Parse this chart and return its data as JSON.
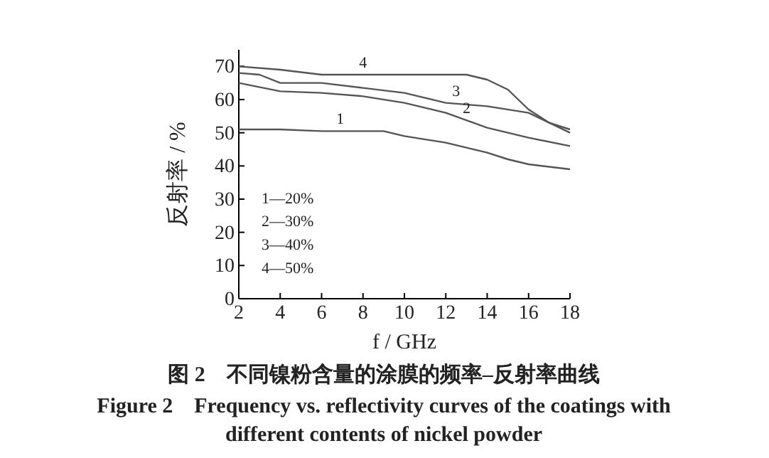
{
  "chart_data": {
    "type": "line",
    "title": "图 2　不同镍粉含量的涂膜的频率–反射率曲线",
    "subtitle": "Figure 2　Frequency vs. reflectivity curves of the coatings with different contents of nickel powder",
    "xlabel": "f / GHz",
    "ylabel": "反射率 / %",
    "xlim": [
      2,
      18
    ],
    "xticks": [
      2,
      4,
      6,
      8,
      10,
      12,
      14,
      16,
      18
    ],
    "ylim": [
      0,
      75
    ],
    "yticks": [
      0,
      10,
      20,
      30,
      40,
      50,
      60,
      70
    ],
    "grid": false,
    "marker": "none",
    "line_style": "solid",
    "series": [
      {
        "color": "#555555",
        "x": [
          2,
          4,
          6,
          8,
          9,
          10,
          12,
          14,
          15,
          16,
          18
        ],
        "values": [
          51,
          51,
          50.5,
          50.5,
          50.5,
          49,
          47,
          44,
          42,
          40.5,
          39
        ]
      },
      {
        "color": "#555555",
        "x": [
          2,
          4,
          6,
          8,
          10,
          12,
          14,
          16,
          18
        ],
        "values": [
          65,
          62.5,
          62,
          61,
          59,
          56,
          51.5,
          48.5,
          46
        ]
      },
      {
        "color": "#555555",
        "x": [
          2,
          3,
          4,
          6,
          8,
          10,
          12,
          14,
          16,
          17,
          18
        ],
        "values": [
          68,
          67.5,
          65,
          65,
          63.5,
          62,
          59,
          58,
          56,
          53,
          50
        ]
      },
      {
        "color": "#555555",
        "x": [
          2,
          4,
          6,
          10,
          13,
          14,
          15,
          16,
          17,
          18
        ],
        "values": [
          70,
          69,
          67.5,
          67.5,
          67.5,
          66,
          63,
          57,
          53,
          51
        ]
      }
    ],
    "annotations": [
      {
        "text": "1",
        "x": 6.9,
        "y": 50.5
      },
      {
        "text": "2",
        "x": 13,
        "y": 53.8
      },
      {
        "text": "3",
        "x": 12.5,
        "y": 59
      },
      {
        "text": "4",
        "x": 8,
        "y": 67.5
      },
      "1—20%",
      "2—30%",
      "3—40%",
      "4—50%"
    ]
  }
}
